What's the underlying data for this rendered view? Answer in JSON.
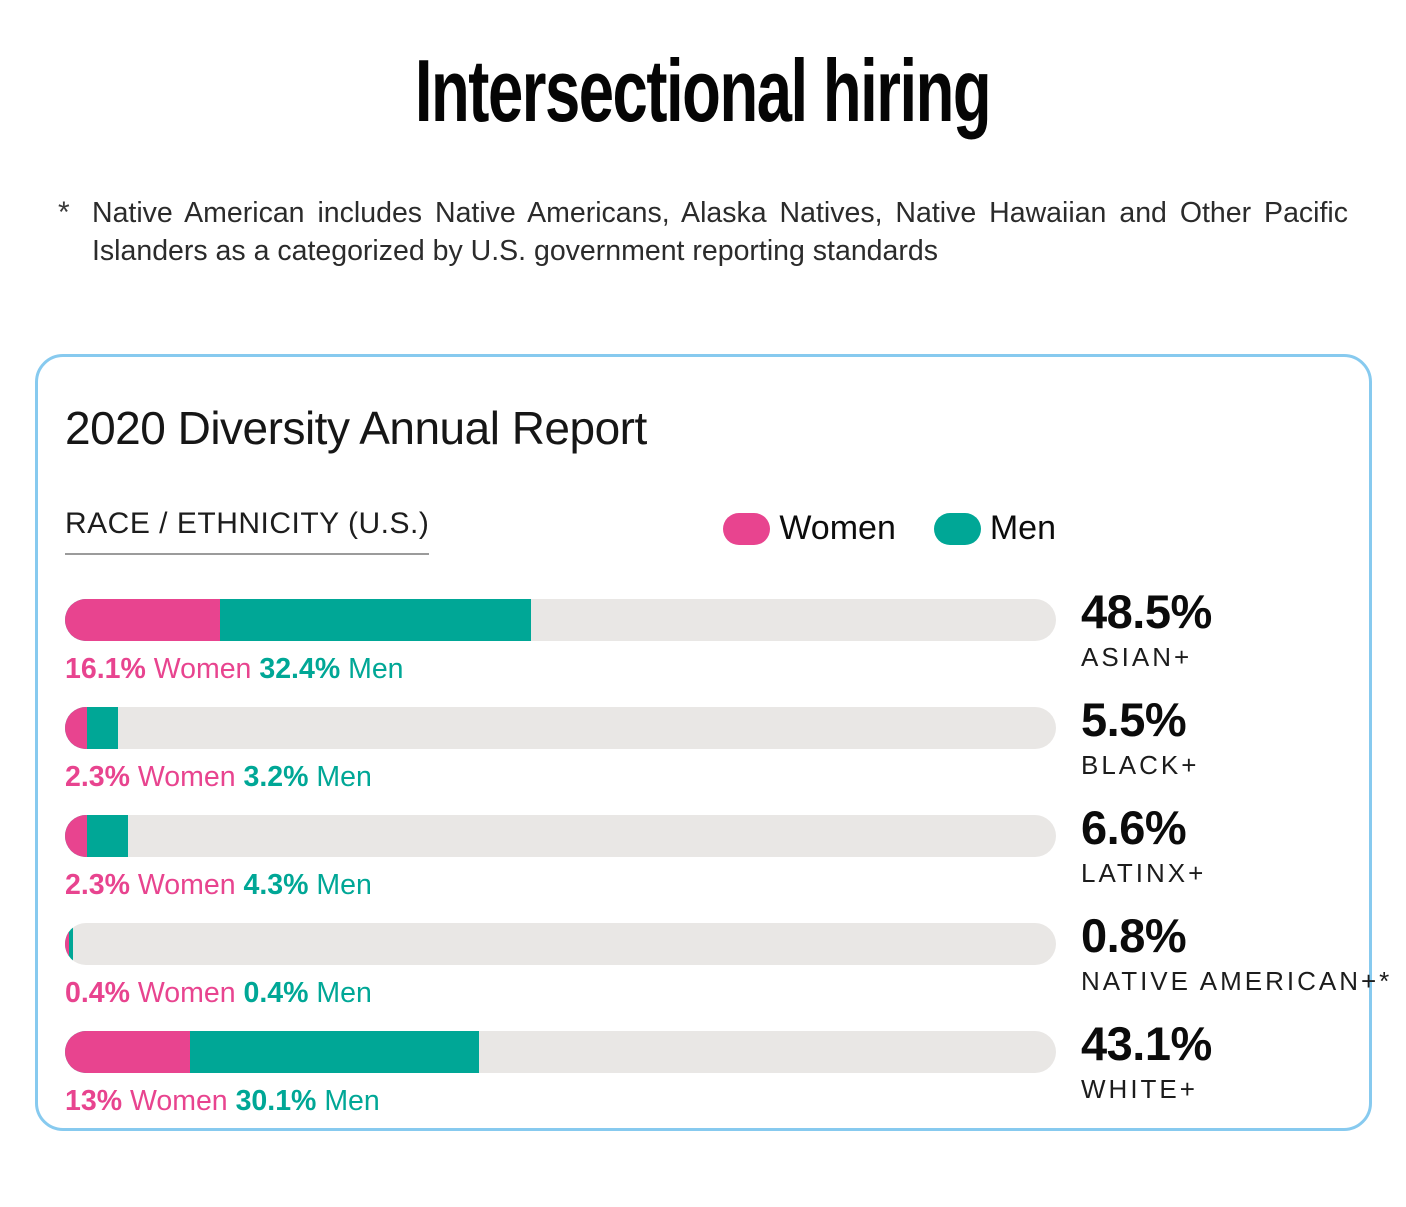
{
  "page": {
    "title": "Intersectional hiring"
  },
  "footnote": {
    "marker": "*",
    "text": "Native American includes Native Americans, Alaska Natives, Native Hawaiian and Other Pacific Islanders as a categorized by U.S. government reporting standards"
  },
  "card": {
    "title": "2020 Diversity Annual Report",
    "section_label": "RACE / ETHNICITY (U.S.)",
    "legend": [
      {
        "label": "Women",
        "color": "#E8448F"
      },
      {
        "label": "Men",
        "color": "#00A796"
      }
    ]
  },
  "colors": {
    "women": "#E8448F",
    "men": "#00A796",
    "track": "#E9E7E5",
    "card_border": "#87CAEF"
  },
  "chart_data": {
    "type": "bar",
    "orientation": "horizontal",
    "stacked": true,
    "units": "%",
    "xlim": [
      0,
      100
    ],
    "series_names": [
      "Women",
      "Men"
    ],
    "categories": [
      "ASIAN+",
      "BLACK+",
      "LATINX+",
      "NATIVE AMERICAN+*",
      "WHITE+"
    ],
    "rows": [
      {
        "category": "ASIAN+",
        "total_label": "48.5%",
        "women": 16.1,
        "men": 32.4,
        "women_label": "16.1%",
        "men_label": "32.4%"
      },
      {
        "category": "BLACK+",
        "total_label": "5.5%",
        "women": 2.3,
        "men": 3.2,
        "women_label": "2.3%",
        "men_label": "3.2%"
      },
      {
        "category": "LATINX+",
        "total_label": "6.6%",
        "women": 2.3,
        "men": 4.3,
        "women_label": "2.3%",
        "men_label": "4.3%"
      },
      {
        "category": "NATIVE AMERICAN+*",
        "total_label": "0.8%",
        "women": 0.4,
        "men": 0.4,
        "women_label": "0.4%",
        "men_label": "0.4%"
      },
      {
        "category": "WHITE+",
        "total_label": "43.1%",
        "women": 13,
        "men": 30.1,
        "women_label": "13%",
        "men_label": "30.1%"
      }
    ]
  }
}
